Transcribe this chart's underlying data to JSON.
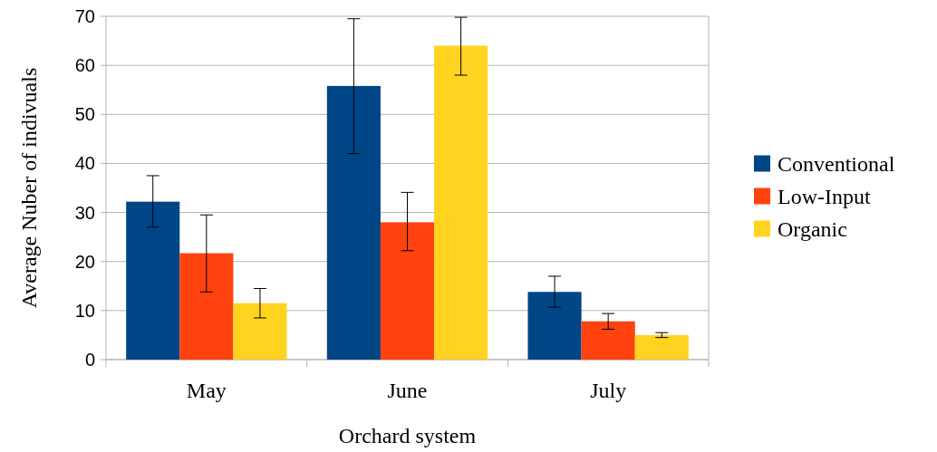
{
  "chart_data": {
    "type": "bar",
    "xlabel": "Orchard system",
    "ylabel": "Average Nuber of indivuals",
    "categories": [
      "May",
      "June",
      "July"
    ],
    "series": [
      {
        "name": "Conventional",
        "color": "#004586",
        "values": [
          32.2,
          55.8,
          13.8
        ],
        "errors": [
          [
            27,
            37.5
          ],
          [
            42,
            69.5
          ],
          [
            10.7,
            17
          ]
        ]
      },
      {
        "name": "Low-Input",
        "color": "#ff420e",
        "values": [
          21.7,
          28,
          7.8
        ],
        "errors": [
          [
            13.8,
            29.5
          ],
          [
            22.2,
            34.1
          ],
          [
            6.2,
            9.4
          ]
        ]
      },
      {
        "name": "Organic",
        "color": "#ffd320",
        "values": [
          11.5,
          64,
          5
        ],
        "errors": [
          [
            8.5,
            14.5
          ],
          [
            58,
            69.8
          ],
          [
            4.5,
            5.5
          ]
        ]
      }
    ],
    "ylim": [
      0,
      70
    ],
    "yticks": [
      0,
      10,
      20,
      30,
      40,
      50,
      60,
      70
    ],
    "grid": "y",
    "legend": "right"
  }
}
